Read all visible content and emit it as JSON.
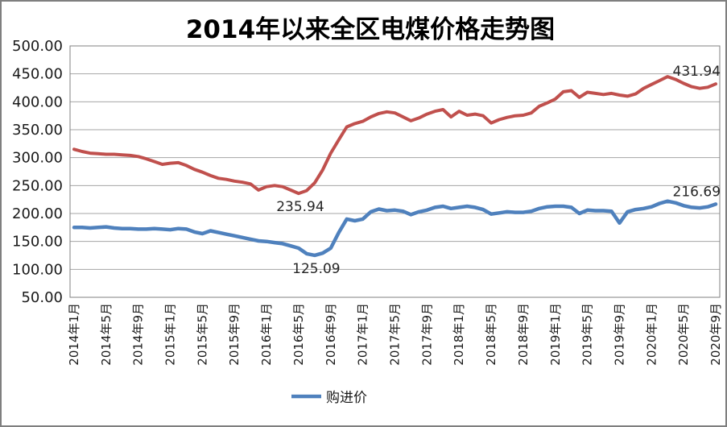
{
  "window": {
    "background": "#ffffff",
    "frame_color": "#7f7f7f"
  },
  "chart_data": {
    "type": "line",
    "title": "2014年以来全区电煤价格走势图",
    "n_points": 81,
    "grid": true,
    "y_axis": {
      "min": 50,
      "max": 500,
      "step": 50,
      "tick_labels": [
        "500.00",
        "450.00",
        "400.00",
        "350.00",
        "300.00",
        "250.00",
        "200.00",
        "150.00",
        "100.00",
        "50.00"
      ]
    },
    "x_axis": {
      "tick_labels": [
        "2014年1月",
        "2014年5月",
        "2014年9月",
        "2015年1月",
        "2015年5月",
        "2015年9月",
        "2016年1月",
        "2016年5月",
        "2016年9月",
        "2017年1月",
        "2017年5月",
        "2017年9月",
        "2018年1月",
        "2018年5月",
        "2018年9月",
        "2019年1月",
        "2019年5月",
        "2019年9月",
        "2020年1月",
        "2020年5月",
        "2020年9月"
      ],
      "tick_month_indices": [
        0,
        4,
        8,
        12,
        16,
        20,
        24,
        28,
        32,
        36,
        40,
        44,
        48,
        52,
        56,
        60,
        64,
        68,
        72,
        76,
        80
      ]
    },
    "series": [
      {
        "name": "购进价",
        "color": "#4f81bd",
        "stroke_width": 4.5,
        "values": [
          175,
          175,
          174,
          175,
          176,
          174,
          173,
          173,
          172,
          172,
          173,
          172,
          171,
          173,
          172,
          167,
          164,
          169,
          166,
          163,
          160,
          157,
          154,
          151,
          150,
          148,
          146,
          142,
          138,
          128,
          125.09,
          129,
          138,
          166,
          190,
          187,
          190,
          203,
          208,
          205,
          206,
          204,
          198,
          203,
          206,
          211,
          213,
          209,
          211,
          213,
          211,
          207,
          199,
          201,
          203,
          202,
          202,
          204,
          209,
          212,
          213,
          213,
          211,
          200,
          206,
          205,
          205,
          204,
          183,
          203,
          207,
          209,
          212,
          218,
          222,
          219,
          214,
          211,
          210,
          212,
          216.69
        ]
      },
      {
        "name": "",
        "color": "#c0504d",
        "stroke_width": 4,
        "values": [
          315,
          311,
          308,
          307,
          306,
          306,
          305,
          304,
          302,
          298,
          293,
          288,
          290,
          291,
          286,
          279,
          274,
          268,
          263,
          261,
          258,
          256,
          253,
          242,
          248,
          250,
          248,
          242,
          235.94,
          241,
          255,
          278,
          308,
          332,
          355,
          361,
          365,
          373,
          379,
          382,
          380,
          373,
          366,
          371,
          378,
          383,
          386,
          373,
          383,
          376,
          378,
          375,
          362,
          368,
          372,
          375,
          376,
          380,
          392,
          398,
          405,
          418,
          420,
          408,
          417,
          415,
          413,
          415,
          412,
          410,
          414,
          424,
          431,
          438,
          445,
          440,
          433,
          427,
          424,
          426,
          431.94
        ]
      }
    ],
    "annotations": [
      {
        "text": "235.94",
        "series": 1,
        "month_index": 28,
        "value": 235.94,
        "placement": "below"
      },
      {
        "text": "125.09",
        "series": 0,
        "month_index": 30,
        "value": 125.09,
        "placement": "below"
      },
      {
        "text": "431.94",
        "series": 1,
        "month_index": 80,
        "value": 431.94,
        "placement": "end-above"
      },
      {
        "text": "216.69",
        "series": 0,
        "month_index": 80,
        "value": 216.69,
        "placement": "end-above"
      }
    ],
    "legend": {
      "position": "bottom-center",
      "entries": [
        {
          "label": "购进价",
          "color": "#4f81bd"
        }
      ]
    },
    "colors": {
      "gridline": "#a6a6a6",
      "plot_border": "#808080",
      "text": "#000000"
    }
  }
}
